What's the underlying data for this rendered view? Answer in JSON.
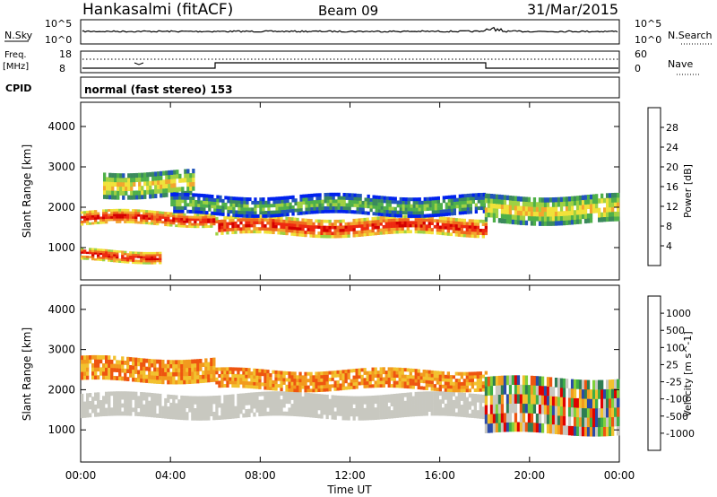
{
  "header": {
    "station": "Hankasalmi (fitACF)",
    "beam": "Beam 09",
    "date": "31/Mar/2015"
  },
  "strips": {
    "nsky_label": "N.Sky",
    "nsearch_label": "N.Search",
    "nsky_ticks": [
      "10^5",
      "10^0"
    ],
    "nsearch_ticks": [
      "10^5",
      "10^0"
    ],
    "freq_label": "Freq.",
    "freq_unit": "[MHz]",
    "freq_ticks": [
      "18",
      "8"
    ],
    "nave_label": "Nave",
    "nave_ticks": [
      "60",
      "0"
    ],
    "cpid_label": "CPID",
    "cpid_text": "normal (fast stereo) 153"
  },
  "x_axis": {
    "label": "Time UT",
    "ticks": [
      "00:00",
      "04:00",
      "08:00",
      "12:00",
      "16:00",
      "20:00",
      "00:00"
    ]
  },
  "chart_data": [
    {
      "type": "heatmap",
      "panel": "power",
      "ylabel": "Slant Range [km]",
      "y_ticks": [
        "4000",
        "3000",
        "2000",
        "1000"
      ],
      "ylim": [
        200,
        4600
      ],
      "xlim": [
        0,
        24
      ],
      "colorbar": {
        "label": "Power [dB]",
        "ticks": [
          "28",
          "24",
          "20",
          "16",
          "12",
          "8",
          "4"
        ],
        "colors": [
          "#0022ee",
          "#2255bb",
          "#3b8a5c",
          "#4fb04a",
          "#9fd142",
          "#f0e23a",
          "#f2a52e",
          "#ef6a1e",
          "#ee2a10",
          "#d40000"
        ]
      },
      "bands": [
        {
          "x": [
            0.0,
            6.0
          ],
          "range": [
            1550,
            1900
          ],
          "level": "high"
        },
        {
          "x": [
            6.0,
            18.0
          ],
          "range": [
            1300,
            1750
          ],
          "level": "high"
        },
        {
          "x": [
            0.0,
            3.5
          ],
          "range": [
            650,
            950
          ],
          "level": "high"
        },
        {
          "x": [
            1.0,
            5.0
          ],
          "range": [
            2250,
            2900
          ],
          "level": "medium"
        },
        {
          "x": [
            4.0,
            18.0
          ],
          "range": [
            1800,
            2300
          ],
          "level": "low"
        },
        {
          "x": [
            18.0,
            24.0
          ],
          "range": [
            1600,
            2300
          ],
          "level": "medium"
        }
      ]
    },
    {
      "type": "heatmap",
      "panel": "velocity",
      "ylabel": "Slant Range [km]",
      "y_ticks": [
        "4000",
        "3000",
        "2000",
        "1000"
      ],
      "ylim": [
        200,
        4600
      ],
      "xlim": [
        0,
        24
      ],
      "colorbar": {
        "label": "Velocity [m s^-1]",
        "ticks": [
          "1000",
          "500",
          "100",
          "25",
          "-25",
          "-100",
          "-500",
          "-1000"
        ],
        "colors": [
          "#2a4aa8",
          "#2e7d52",
          "#3fae45",
          "#7fd13a",
          "#c8c8c0",
          "#c8c8c0",
          "#f2c12e",
          "#f29a1e",
          "#ee5510",
          "#e00000"
        ]
      },
      "bands": [
        {
          "x": [
            0.0,
            18.0
          ],
          "range": [
            1300,
            1900
          ],
          "level": "ground"
        },
        {
          "x": [
            0.0,
            6.0
          ],
          "range": [
            2200,
            2800
          ],
          "level": "negative"
        },
        {
          "x": [
            6.0,
            18.0
          ],
          "range": [
            2000,
            2500
          ],
          "level": "negative"
        },
        {
          "x": [
            18.0,
            24.0
          ],
          "range": [
            900,
            2300
          ],
          "level": "mixed"
        }
      ]
    }
  ]
}
